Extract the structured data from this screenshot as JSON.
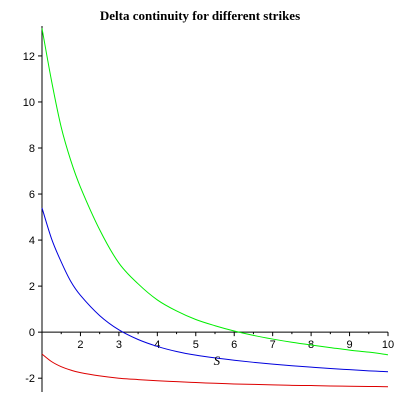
{
  "chart_data": {
    "type": "line",
    "title": "Delta continuity for different strikes",
    "xlabel": "S",
    "ylabel": "",
    "xlim": [
      1,
      10
    ],
    "ylim": [
      -2.6,
      13.3
    ],
    "x_ticks": [
      "2",
      "3",
      "4",
      "5",
      "6",
      "7",
      "8",
      "9",
      "10"
    ],
    "y_ticks": [
      "-2",
      "0",
      "2",
      "4",
      "6",
      "8",
      "10",
      "12"
    ],
    "grid": false,
    "series": [
      {
        "color": "#00ee00",
        "x": [
          1.0,
          1.25,
          1.5,
          1.75,
          2.0,
          2.5,
          3.0,
          3.5,
          4.0,
          4.5,
          5.0,
          5.5,
          6.0,
          6.5,
          7.0,
          7.5,
          8.0,
          8.5,
          9.0,
          9.5,
          10.0
        ],
        "values": [
          13.2,
          10.9,
          8.9,
          7.45,
          6.3,
          4.45,
          3.0,
          2.1,
          1.4,
          0.92,
          0.55,
          0.28,
          0.05,
          -0.14,
          -0.3,
          -0.44,
          -0.56,
          -0.67,
          -0.78,
          -0.87,
          -0.98
        ]
      },
      {
        "color": "#0000dd",
        "x": [
          1.0,
          1.25,
          1.5,
          1.75,
          2.0,
          2.5,
          3.0,
          3.5,
          4.0,
          4.5,
          5.0,
          5.5,
          6.0,
          6.5,
          7.0,
          7.5,
          8.0,
          8.5,
          9.0,
          9.5,
          10.0
        ],
        "values": [
          5.4,
          4.05,
          3.05,
          2.2,
          1.6,
          0.72,
          0.1,
          -0.32,
          -0.62,
          -0.84,
          -1.0,
          -1.12,
          -1.22,
          -1.31,
          -1.39,
          -1.46,
          -1.52,
          -1.58,
          -1.63,
          -1.68,
          -1.72
        ]
      },
      {
        "color": "#dd0000",
        "x": [
          1.0,
          1.25,
          1.5,
          1.75,
          2.0,
          2.5,
          3.0,
          3.5,
          4.0,
          4.5,
          5.0,
          5.5,
          6.0,
          6.5,
          7.0,
          7.5,
          8.0,
          8.5,
          9.0,
          9.5,
          10.0
        ],
        "values": [
          -0.95,
          -1.28,
          -1.5,
          -1.65,
          -1.76,
          -1.9,
          -2.0,
          -2.06,
          -2.11,
          -2.15,
          -2.19,
          -2.22,
          -2.25,
          -2.27,
          -2.29,
          -2.31,
          -2.32,
          -2.34,
          -2.35,
          -2.36,
          -2.37
        ]
      }
    ]
  }
}
